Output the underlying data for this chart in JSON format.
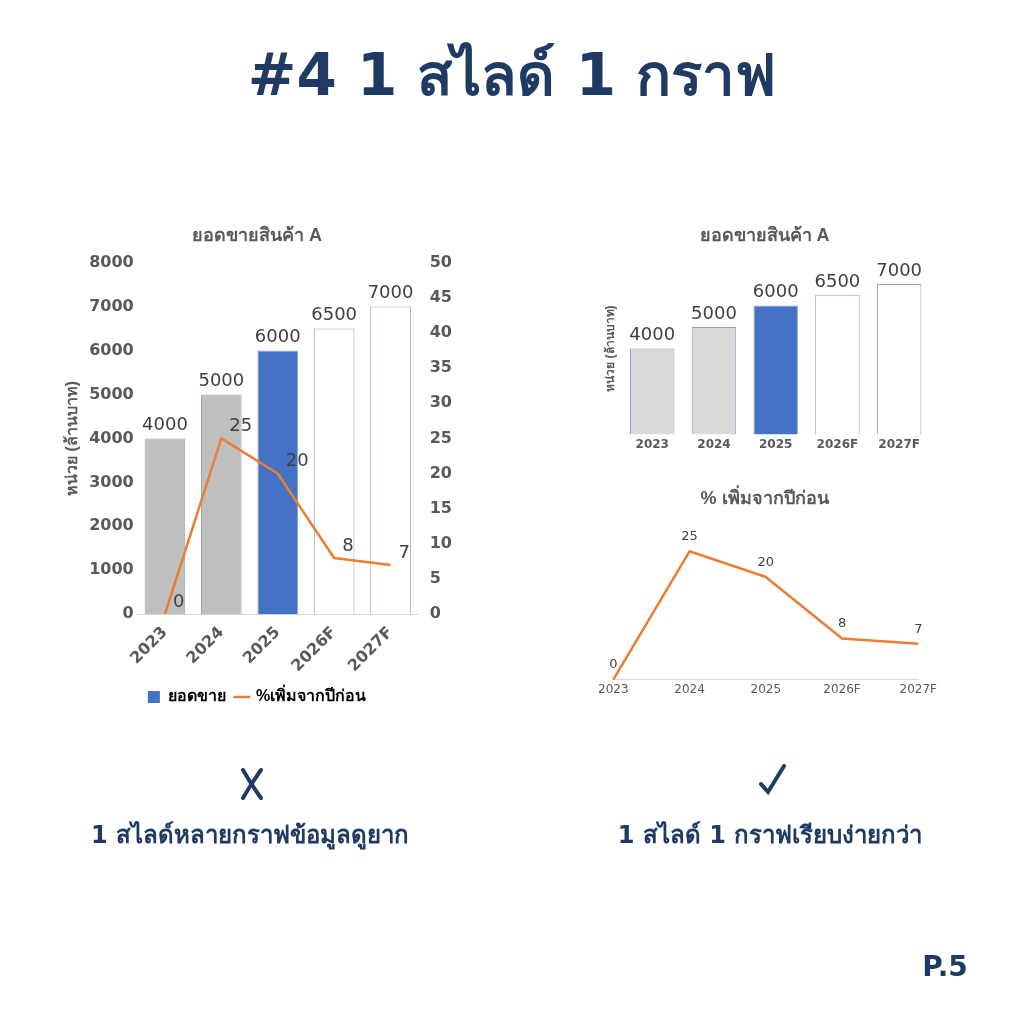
{
  "chart_data": [
    {
      "type": "other",
      "title": "#4 1 สไลด์ 1 กราฟ",
      "annotations": [
        "1 สไลด์หลายกราฟข้อมูลดูยาก",
        "1 สไลด์ 1 กราฟเรียบง่ายกว่า",
        "P.5"
      ]
    },
    {
      "type": "bar",
      "title": "ยอดขายสินค้า A",
      "ylabel": "หน่วย (ล้านบาท)",
      "categories": [
        "2023",
        "2024",
        "2025",
        "2026F",
        "2027F"
      ],
      "series": [
        {
          "name": "ยอดขาย",
          "type": "bar",
          "color": "#4472c4",
          "colors": [
            "#bfbfbf",
            "#bfbfbf",
            "#4472c4",
            "#ffffff",
            "#ffffff"
          ],
          "values": [
            4000,
            5000,
            6000,
            6500,
            7000
          ]
        },
        {
          "name": "%เพิ่มจากปีก่อน",
          "type": "line",
          "axis": "y2",
          "color": "#ed7d31",
          "values": [
            0,
            25,
            20,
            8,
            7
          ]
        }
      ],
      "ylim": [
        0,
        8000
      ],
      "yticks": [
        0,
        1000,
        2000,
        3000,
        4000,
        5000,
        6000,
        7000,
        8000
      ],
      "y2lim": [
        0,
        50
      ],
      "y2ticks": [
        0,
        5,
        10,
        15,
        20,
        25,
        30,
        35,
        40,
        45,
        50
      ],
      "data_labels": true,
      "legend": "bottom",
      "marker": "none"
    },
    {
      "type": "bar",
      "title": "ยอดขายสินค้า A",
      "ylabel": "หน่วย (ล้านบาท)",
      "categories": [
        "2023",
        "2024",
        "2025",
        "2026F",
        "2027F"
      ],
      "colors": [
        "#d9d9d9",
        "#d9d9d9",
        "#4472c4",
        "#ffffff",
        "#ffffff"
      ],
      "values": [
        4000,
        5000,
        6000,
        6500,
        7000
      ],
      "data_labels": true,
      "tick_labels": "x"
    },
    {
      "type": "line",
      "title": "% เพิ่มจากปีก่อน",
      "categories": [
        "2023",
        "2024",
        "2025",
        "2026F",
        "2027F"
      ],
      "color": "#ed7d31",
      "values": [
        0,
        25,
        20,
        8,
        7
      ],
      "data_labels": true,
      "tick_labels": "x",
      "marker": "none"
    }
  ]
}
